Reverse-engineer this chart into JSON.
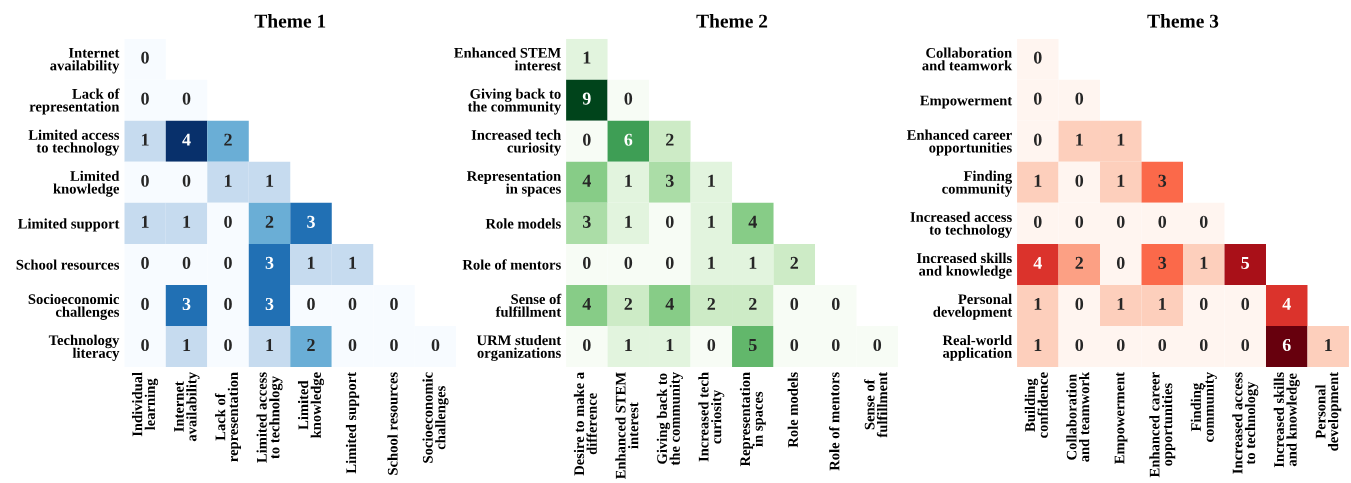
{
  "chart_data": [
    {
      "type": "heatmap",
      "title": "Theme 1",
      "colors": [
        "#f7fbff",
        "#c6dbef",
        "#6baed6",
        "#2171b5",
        "#08306b"
      ],
      "data_labels": true,
      "categories": [
        "Individual\nlearning",
        "Internet\navailability",
        "Lack of\nrepresentation",
        "Limited access\nto technology",
        "Limited\nknowledge",
        "Limited support",
        "School resources",
        "Socioeconomic\nchallenges"
      ],
      "y_categories": [
        "Internet\navailability",
        "Lack of\nrepresentation",
        "Limited access\nto technology",
        "Limited\nknowledge",
        "Limited support",
        "School resources",
        "Socioeconomic\nchallenges",
        "Technology\nliteracy"
      ],
      "cells": [
        [
          0,
          null,
          null,
          null,
          null,
          null,
          null,
          null
        ],
        [
          0,
          0,
          null,
          null,
          null,
          null,
          null,
          null
        ],
        [
          1,
          4,
          2,
          null,
          null,
          null,
          null,
          null
        ],
        [
          0,
          0,
          1,
          1,
          null,
          null,
          null,
          null
        ],
        [
          1,
          1,
          0,
          2,
          3,
          null,
          null,
          null
        ],
        [
          0,
          0,
          0,
          3,
          1,
          1,
          null,
          null
        ],
        [
          0,
          3,
          0,
          3,
          0,
          0,
          0,
          null
        ],
        [
          0,
          1,
          0,
          1,
          2,
          0,
          0,
          0
        ]
      ]
    },
    {
      "type": "heatmap",
      "title": "Theme 2",
      "colors": [
        "#f7fcf5",
        "#c7e9c0",
        "#74c476",
        "#238b45",
        "#00441b"
      ],
      "data_labels": true,
      "categories": [
        "Desire to make a\ndifference",
        "Enhanced STEM\ninterest",
        "Giving back to\nthe community",
        "Increased tech\ncuriosity",
        "Representation\nin spaces",
        "Role models",
        "Role of mentors",
        "Sense of\nfulfillment"
      ],
      "y_categories": [
        "Enhanced STEM\ninterest",
        "Giving back to\nthe community",
        "Increased tech\ncuriosity",
        "Representation\nin spaces",
        "Role models",
        "Role of mentors",
        "Sense of\nfulfillment",
        "URM student\norganizations"
      ],
      "cells": [
        [
          1,
          null,
          null,
          null,
          null,
          null,
          null,
          null
        ],
        [
          9,
          0,
          null,
          null,
          null,
          null,
          null,
          null
        ],
        [
          0,
          6,
          2,
          null,
          null,
          null,
          null,
          null
        ],
        [
          4,
          1,
          3,
          1,
          null,
          null,
          null,
          null
        ],
        [
          3,
          1,
          0,
          1,
          4,
          null,
          null,
          null
        ],
        [
          0,
          0,
          0,
          1,
          1,
          2,
          null,
          null
        ],
        [
          4,
          2,
          4,
          2,
          2,
          0,
          0,
          null
        ],
        [
          0,
          1,
          1,
          0,
          5,
          0,
          0,
          0
        ]
      ]
    },
    {
      "type": "heatmap",
      "title": "Theme 3",
      "colors": [
        "#fff5f0",
        "#fcbba1",
        "#fb6a4a",
        "#cb181d",
        "#67000d"
      ],
      "data_labels": true,
      "categories": [
        "Building\nconfidence",
        "Collaboration\nand teamwork",
        "Empowerment",
        "Enhanced career\nopportunities",
        "Finding\ncommunity",
        "Increased access\nto technology",
        "Increased skills\nand knowledge",
        "Personal\ndevelopment"
      ],
      "y_categories": [
        "Collaboration\nand teamwork",
        "Empowerment",
        "Enhanced career\nopportunities",
        "Finding\ncommunity",
        "Increased access\nto technology",
        "Increased skills\nand knowledge",
        "Personal\ndevelopment",
        "Real-world\napplication"
      ],
      "cells": [
        [
          0,
          null,
          null,
          null,
          null,
          null,
          null,
          null
        ],
        [
          0,
          0,
          null,
          null,
          null,
          null,
          null,
          null
        ],
        [
          0,
          1,
          1,
          null,
          null,
          null,
          null,
          null
        ],
        [
          1,
          0,
          1,
          3,
          null,
          null,
          null,
          null
        ],
        [
          0,
          0,
          0,
          0,
          0,
          null,
          null,
          null
        ],
        [
          4,
          2,
          0,
          3,
          1,
          5,
          null,
          null
        ],
        [
          1,
          0,
          1,
          1,
          0,
          0,
          4,
          null
        ],
        [
          1,
          0,
          0,
          0,
          0,
          0,
          6,
          1
        ]
      ]
    }
  ]
}
